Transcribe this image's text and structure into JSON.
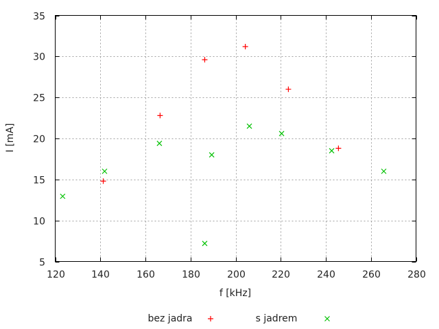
{
  "chart_data": {
    "type": "scatter",
    "title": "",
    "xlabel": "f [kHz]",
    "ylabel": "I [mA]",
    "xlim": [
      120,
      280
    ],
    "ylim": [
      5,
      35
    ],
    "xticks": [
      120,
      140,
      160,
      180,
      200,
      220,
      240,
      260,
      280
    ],
    "yticks": [
      5,
      10,
      15,
      20,
      25,
      30,
      35
    ],
    "grid": true,
    "legend_position": "bottom",
    "series": [
      {
        "name": "bez jadra",
        "marker": "plus",
        "color": "#ff0000",
        "x": [
          141.3,
          166.5,
          186.3,
          204.3,
          223.4,
          245.6
        ],
        "y": [
          14.8,
          22.8,
          29.6,
          31.2,
          26.0,
          18.8
        ]
      },
      {
        "name": "s jadrem",
        "marker": "cross",
        "color": "#00c000",
        "x": [
          123.3,
          141.9,
          166.2,
          186.3,
          189.4,
          206.1,
          220.4,
          242.6,
          265.7
        ],
        "y": [
          12.95,
          16.0,
          19.4,
          7.2,
          18.0,
          21.5,
          20.6,
          18.5,
          16.0
        ]
      }
    ]
  }
}
